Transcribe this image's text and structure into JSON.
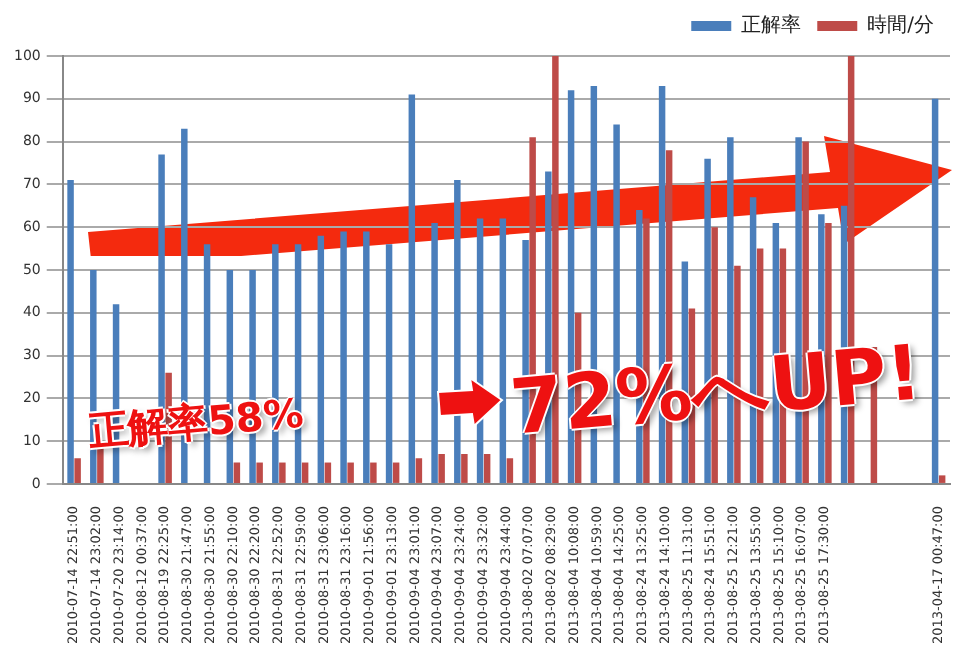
{
  "chart_data": {
    "type": "bar",
    "categories": [
      "2010-07-14 22:51:00",
      "2010-07-14 23:02:00",
      "2010-07-20 23:14:00",
      "2010-08-12 00:37:00",
      "2010-08-19 22:25:00",
      "2010-08-30 21:47:00",
      "2010-08-30 21:55:00",
      "2010-08-30 22:10:00",
      "2010-08-30 22:20:00",
      "2010-08-31 22:52:00",
      "2010-08-31 22:59:00",
      "2010-08-31 23:06:00",
      "2010-08-31 23:16:00",
      "2010-09-01 21:56:00",
      "2010-09-01 23:13:00",
      "2010-09-04 23:01:00",
      "2010-09-04 23:07:00",
      "2010-09-04 23:24:00",
      "2010-09-04 23:32:00",
      "2010-09-04 23:44:00",
      "2013-08-02 07:07:00",
      "2013-08-02 08:29:00",
      "2013-08-04 10:08:00",
      "2013-08-04 10:59:00",
      "2013-08-04 14:25:00",
      "2013-08-24 13:25:00",
      "2013-08-24 14:10:00",
      "2013-08-25 11:31:00",
      "2013-08-24 15:51:00",
      "2013-08-25 12:21:00",
      "2013-08-25 13:55:00",
      "2013-08-25 15:10:00",
      "2013-08-25 16:07:00",
      "2013-08-25 17:30:00",
      null,
      null,
      null,
      null,
      "2013-04-17 00:47:00"
    ],
    "series": [
      {
        "name": "正解率",
        "color": "#4a7ebb",
        "values": [
          71,
          50,
          42,
          null,
          77,
          83,
          56,
          50,
          50,
          56,
          56,
          58,
          59,
          59,
          56,
          91,
          61,
          71,
          62,
          62,
          57,
          73,
          92,
          93,
          84,
          64,
          93,
          52,
          76,
          81,
          67,
          61,
          81,
          63,
          65,
          null,
          null,
          null,
          90
        ]
      },
      {
        "name": "時間/分",
        "color": "#be4b48",
        "values": [
          6,
          10,
          null,
          null,
          26,
          null,
          null,
          5,
          5,
          5,
          5,
          5,
          5,
          5,
          5,
          6,
          7,
          7,
          7,
          6,
          81,
          100,
          40,
          null,
          null,
          62,
          78,
          41,
          60,
          51,
          55,
          55,
          80,
          61,
          100,
          32,
          null,
          null,
          2
        ]
      }
    ],
    "ylim": [
      0,
      100
    ],
    "yticks": [
      0,
      10,
      20,
      30,
      40,
      50,
      60,
      70,
      80,
      90,
      100
    ],
    "grid": "y",
    "legend": "top right",
    "annotations": [
      "正解率58%",
      "72%へUP!"
    ]
  }
}
